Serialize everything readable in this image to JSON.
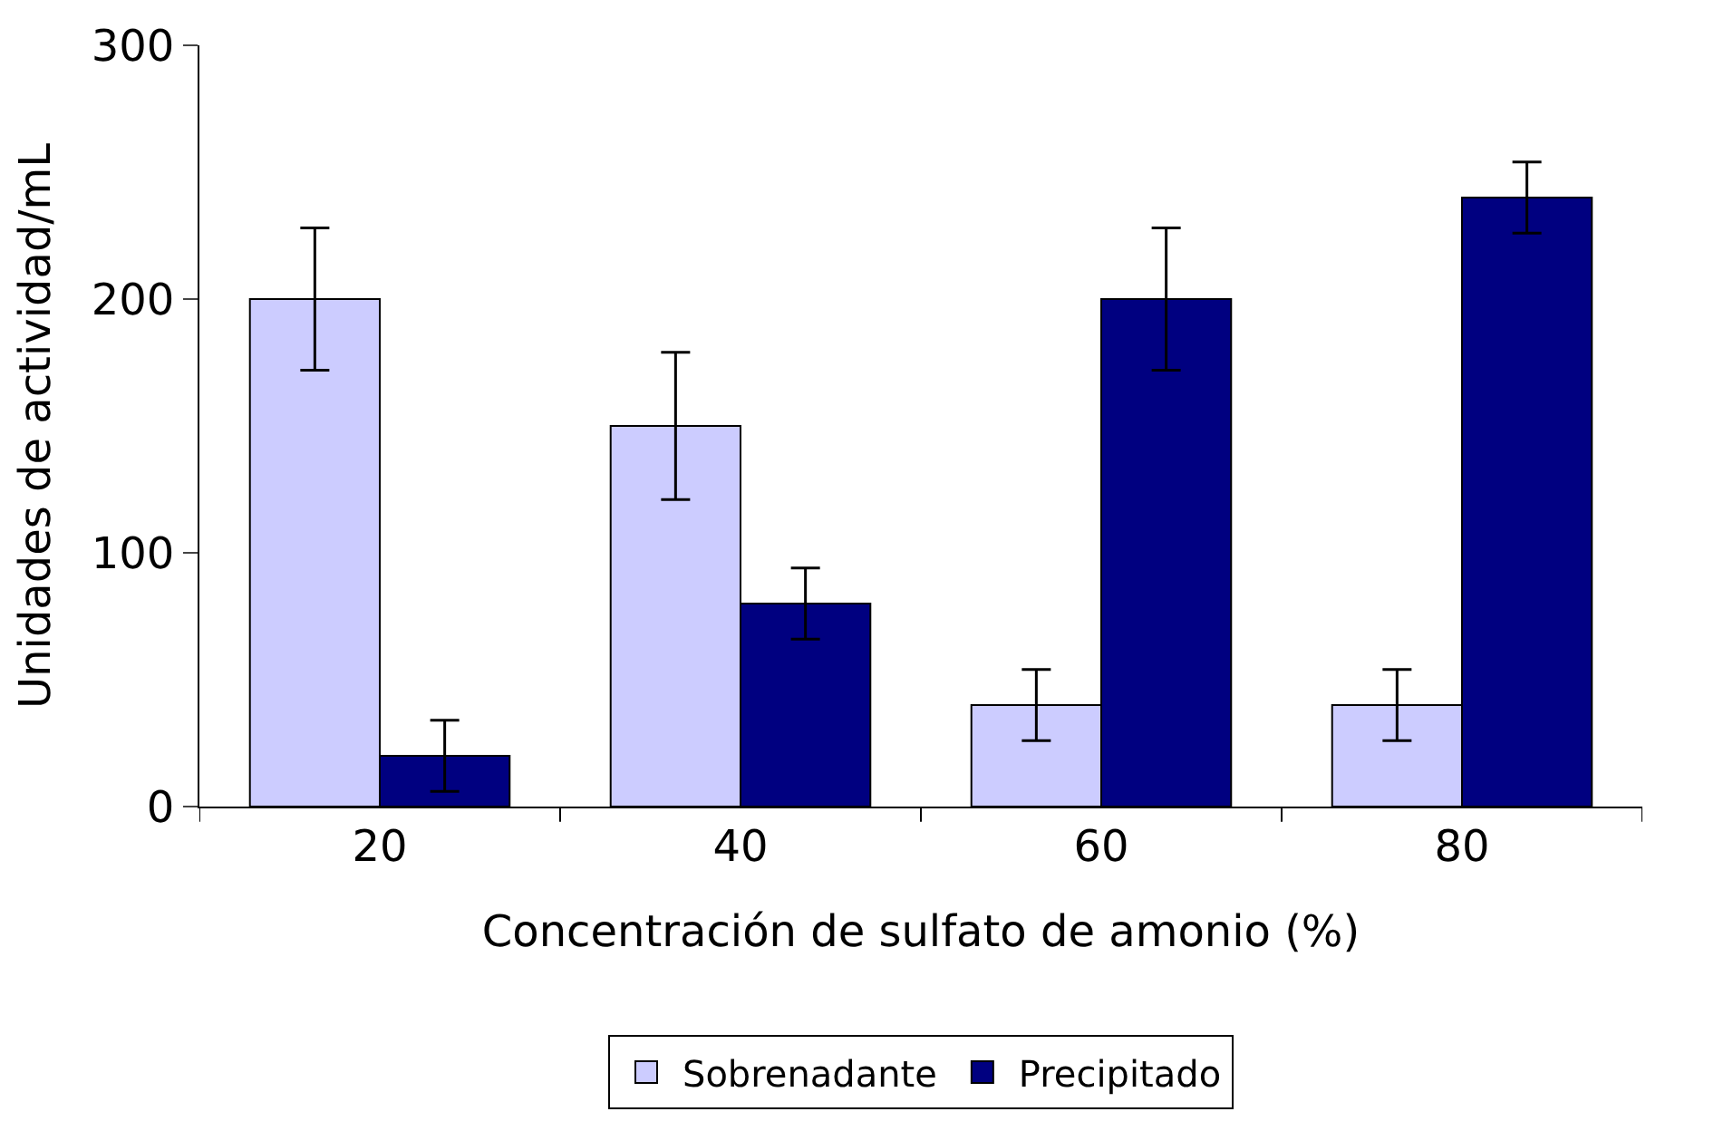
{
  "chart_data": {
    "type": "bar",
    "xlabel": "Concentración de sulfato de amonio (%)",
    "ylabel": "Unidades de actividad/mL",
    "categories": [
      "20",
      "40",
      "60",
      "80"
    ],
    "series": [
      {
        "name": "Sobrenadante",
        "color": "#ccccff",
        "values": [
          200,
          150,
          40,
          40
        ],
        "errors": [
          28,
          29,
          14,
          14
        ]
      },
      {
        "name": "Precipitado",
        "color": "#000080",
        "values": [
          20,
          80,
          200,
          240
        ],
        "errors": [
          14,
          14,
          28,
          14
        ]
      }
    ],
    "ylim": [
      0,
      300
    ],
    "yticks": [
      0,
      100,
      200,
      300
    ],
    "legend": "bottom"
  }
}
